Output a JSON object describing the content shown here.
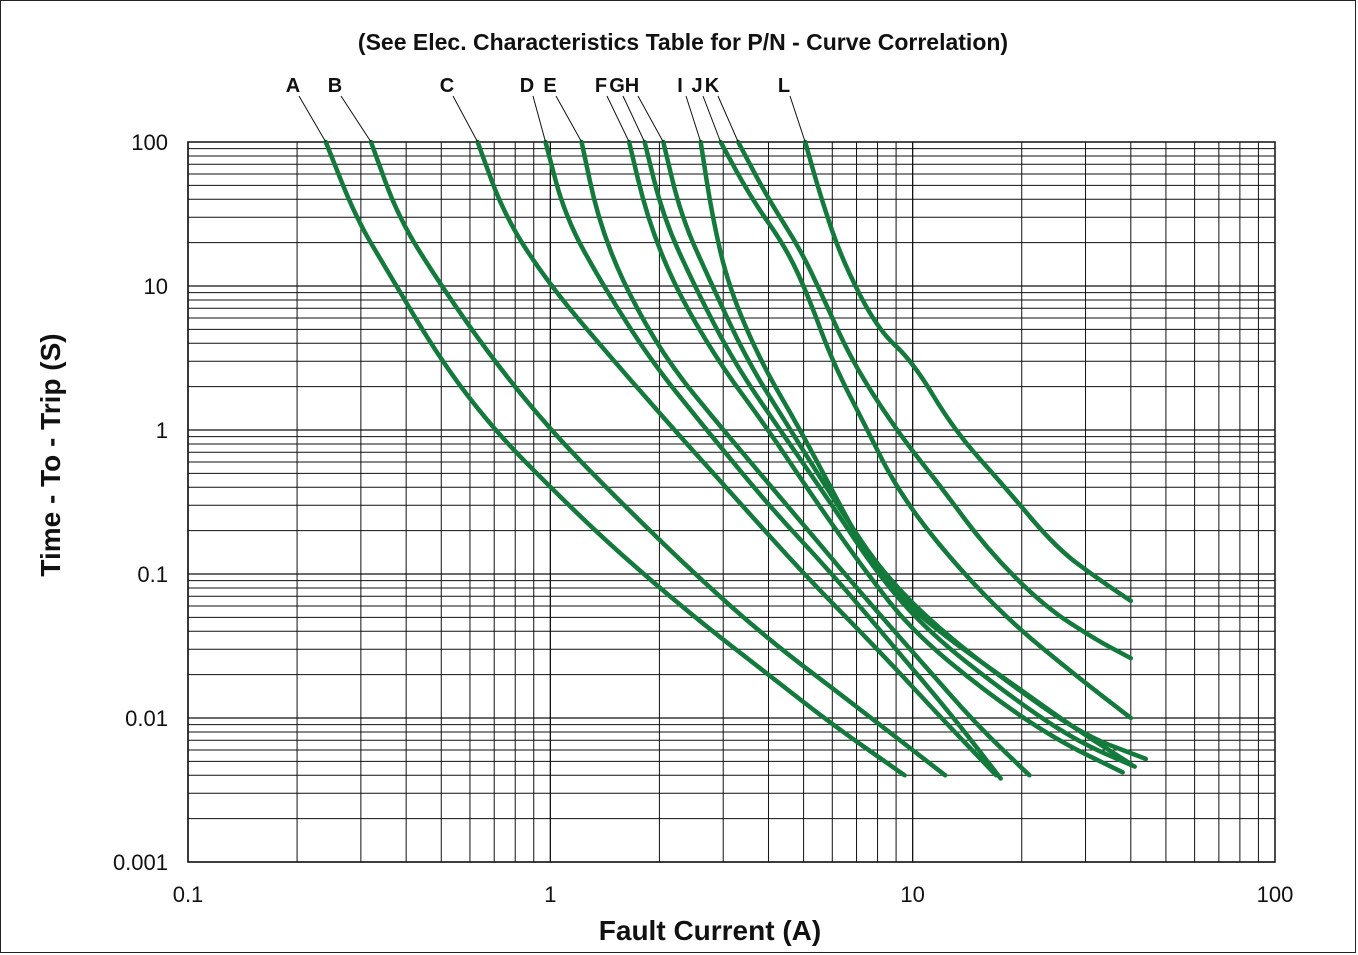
{
  "chart_data": {
    "type": "line",
    "title": "(See Elec. Characteristics Table for P/N - Curve Correlation)",
    "xlabel": "Fault Current (A)",
    "ylabel": "Time - To - Trip (S)",
    "x_scale": "log",
    "y_scale": "log",
    "xlim": [
      0.1,
      100
    ],
    "ylim": [
      0.001,
      100
    ],
    "x_ticks": [
      "0.1",
      "1",
      "10",
      "100"
    ],
    "y_ticks": [
      "0.001",
      "0.01",
      "0.1",
      "1",
      "10",
      "100"
    ],
    "grid": true,
    "series_color": "#137a3c",
    "series": [
      {
        "name": "A",
        "points": [
          [
            0.24,
            100
          ],
          [
            0.29,
            30
          ],
          [
            0.36,
            12
          ],
          [
            0.5,
            3
          ],
          [
            0.7,
            1
          ],
          [
            1.0,
            0.4
          ],
          [
            1.5,
            0.15
          ],
          [
            2.5,
            0.05
          ],
          [
            4.0,
            0.02
          ],
          [
            6.0,
            0.009
          ],
          [
            9.5,
            0.004
          ]
        ]
      },
      {
        "name": "B",
        "points": [
          [
            0.32,
            100
          ],
          [
            0.38,
            30
          ],
          [
            0.5,
            10
          ],
          [
            0.7,
            3
          ],
          [
            1.0,
            1
          ],
          [
            1.5,
            0.35
          ],
          [
            2.5,
            0.1
          ],
          [
            4.0,
            0.035
          ],
          [
            7.0,
            0.012
          ],
          [
            12.3,
            0.004
          ]
        ]
      },
      {
        "name": "C",
        "points": [
          [
            0.63,
            100
          ],
          [
            0.75,
            30
          ],
          [
            1.0,
            10
          ],
          [
            1.5,
            3
          ],
          [
            2.2,
            1
          ],
          [
            3.2,
            0.35
          ],
          [
            5.0,
            0.1
          ],
          [
            8.0,
            0.03
          ],
          [
            12.0,
            0.01
          ],
          [
            17.0,
            0.004
          ]
        ]
      },
      {
        "name": "D",
        "points": [
          [
            0.97,
            100
          ],
          [
            1.1,
            30
          ],
          [
            1.4,
            10
          ],
          [
            1.9,
            3
          ],
          [
            2.7,
            1
          ],
          [
            4.0,
            0.3
          ],
          [
            6.0,
            0.1
          ],
          [
            9.0,
            0.03
          ],
          [
            13.0,
            0.01
          ],
          [
            17.5,
            0.0038
          ]
        ]
      },
      {
        "name": "E",
        "points": [
          [
            1.22,
            100
          ],
          [
            1.35,
            30
          ],
          [
            1.6,
            10
          ],
          [
            2.1,
            3
          ],
          [
            3.0,
            1
          ],
          [
            4.5,
            0.3
          ],
          [
            7.0,
            0.08
          ],
          [
            10.5,
            0.025
          ],
          [
            15.0,
            0.009
          ],
          [
            21.0,
            0.004
          ]
        ]
      },
      {
        "name": "F",
        "points": [
          [
            1.65,
            100
          ],
          [
            1.85,
            30
          ],
          [
            2.2,
            10
          ],
          [
            2.9,
            3
          ],
          [
            4.0,
            1
          ],
          [
            5.5,
            0.3
          ],
          [
            7.5,
            0.1
          ],
          [
            10.0,
            0.04
          ],
          [
            16.0,
            0.015
          ],
          [
            25.0,
            0.007
          ],
          [
            38.0,
            0.0042
          ]
        ]
      },
      {
        "name": "G",
        "points": [
          [
            1.82,
            100
          ],
          [
            2.05,
            30
          ],
          [
            2.5,
            10
          ],
          [
            3.2,
            3
          ],
          [
            4.3,
            1
          ],
          [
            6.0,
            0.3
          ],
          [
            8.0,
            0.1
          ],
          [
            11.0,
            0.04
          ],
          [
            18.0,
            0.015
          ],
          [
            28.0,
            0.007
          ],
          [
            41.0,
            0.0046
          ]
        ]
      },
      {
        "name": "H",
        "points": [
          [
            2.05,
            100
          ],
          [
            2.3,
            30
          ],
          [
            2.8,
            10
          ],
          [
            3.5,
            3
          ],
          [
            4.6,
            1
          ],
          [
            6.2,
            0.3
          ],
          [
            8.3,
            0.1
          ],
          [
            12.0,
            0.04
          ],
          [
            20.0,
            0.015
          ],
          [
            30.0,
            0.0075
          ],
          [
            44.0,
            0.0052
          ]
        ]
      },
      {
        "name": "I",
        "points": [
          [
            2.6,
            100
          ],
          [
            2.8,
            30
          ],
          [
            3.1,
            10
          ],
          [
            3.8,
            3
          ],
          [
            4.9,
            1
          ],
          [
            6.3,
            0.3
          ],
          [
            8.0,
            0.1
          ],
          [
            11.0,
            0.045
          ],
          [
            19.0,
            0.017
          ],
          [
            29.0,
            0.008
          ],
          [
            40.0,
            0.0048
          ]
        ]
      },
      {
        "name": "J",
        "points": [
          [
            2.95,
            100
          ],
          [
            3.6,
            40
          ],
          [
            4.5,
            18
          ],
          [
            5.2,
            8
          ],
          [
            6.0,
            3
          ],
          [
            7.5,
            1
          ],
          [
            9.0,
            0.4
          ],
          [
            12.0,
            0.15
          ],
          [
            18.0,
            0.05
          ],
          [
            28.0,
            0.02
          ],
          [
            40.0,
            0.01
          ]
        ]
      },
      {
        "name": "K",
        "points": [
          [
            3.3,
            100
          ],
          [
            4.0,
            40
          ],
          [
            4.9,
            18
          ],
          [
            5.7,
            8
          ],
          [
            6.8,
            3
          ],
          [
            9.0,
            1
          ],
          [
            12.0,
            0.4
          ],
          [
            16.0,
            0.15
          ],
          [
            23.0,
            0.06
          ],
          [
            32.0,
            0.035
          ],
          [
            40.0,
            0.026
          ]
        ]
      },
      {
        "name": "L",
        "points": [
          [
            5.05,
            100
          ],
          [
            5.6,
            40
          ],
          [
            6.4,
            15
          ],
          [
            8.0,
            5
          ],
          [
            10.0,
            3
          ],
          [
            13.0,
            1
          ],
          [
            18.0,
            0.4
          ],
          [
            25.0,
            0.15
          ],
          [
            33.0,
            0.09
          ],
          [
            40.0,
            0.065
          ]
        ]
      }
    ]
  }
}
